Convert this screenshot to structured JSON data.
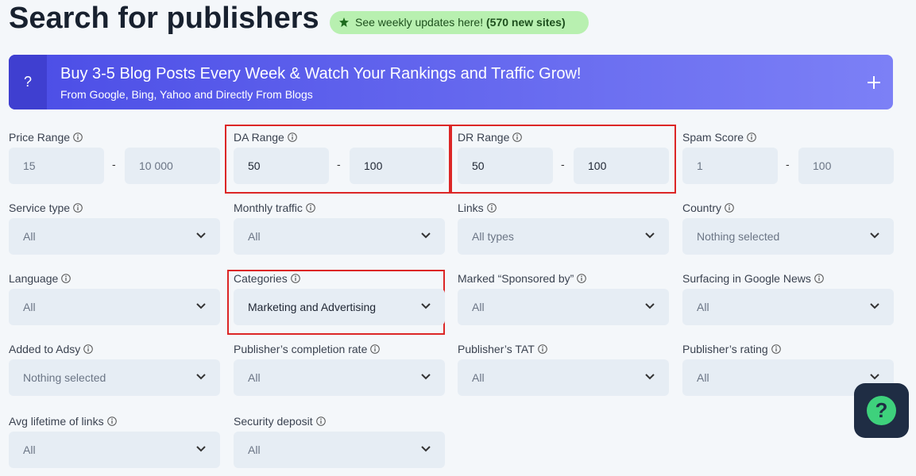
{
  "header": {
    "title": "Search for publishers",
    "badge": "See weekly updates here!",
    "badge_count": "(570 new sites)"
  },
  "banner": {
    "icon": "?",
    "title": "Buy 3-5 Blog Posts Every Week & Watch Your Rankings and Traffic Grow!",
    "subtitle": "From Google, Bing, Yahoo and Directly From Blogs"
  },
  "range_separator": "-",
  "ranges": [
    {
      "label": "Price Range",
      "from": "15",
      "to": "10 000",
      "highlighted": false
    },
    {
      "label": "DA Range",
      "from": "50",
      "to": "100",
      "highlighted": true
    },
    {
      "label": "DR Range",
      "from": "50",
      "to": "100",
      "highlighted": true
    },
    {
      "label": "Spam Score",
      "from": "1",
      "to": "100",
      "highlighted": false
    }
  ],
  "selects": [
    {
      "label": "Service type",
      "value": "All",
      "highlighted": false
    },
    {
      "label": "Monthly traffic",
      "value": "All",
      "highlighted": false
    },
    {
      "label": "Links",
      "value": "All types",
      "highlighted": false
    },
    {
      "label": "Country",
      "value": "Nothing selected",
      "highlighted": false
    },
    {
      "label": "Language",
      "value": "All",
      "highlighted": false
    },
    {
      "label": "Categories",
      "value": "Marketing and Advertising",
      "highlighted": true
    },
    {
      "label": "Marked “Sponsored by”",
      "value": "All",
      "highlighted": false
    },
    {
      "label": "Surfacing in Google News",
      "value": "All",
      "highlighted": false
    },
    {
      "label": "Added to Adsy",
      "value": "Nothing selected",
      "highlighted": false
    },
    {
      "label": "Publisher’s completion rate",
      "value": "All",
      "highlighted": false
    },
    {
      "label": "Publisher’s TAT",
      "value": "All",
      "highlighted": false
    },
    {
      "label": "Publisher’s rating",
      "value": "All",
      "highlighted": false
    },
    {
      "label": "Avg lifetime of links",
      "value": "All",
      "highlighted": false
    },
    {
      "label": "Security deposit",
      "value": "All",
      "highlighted": false
    }
  ],
  "help_button": "?"
}
